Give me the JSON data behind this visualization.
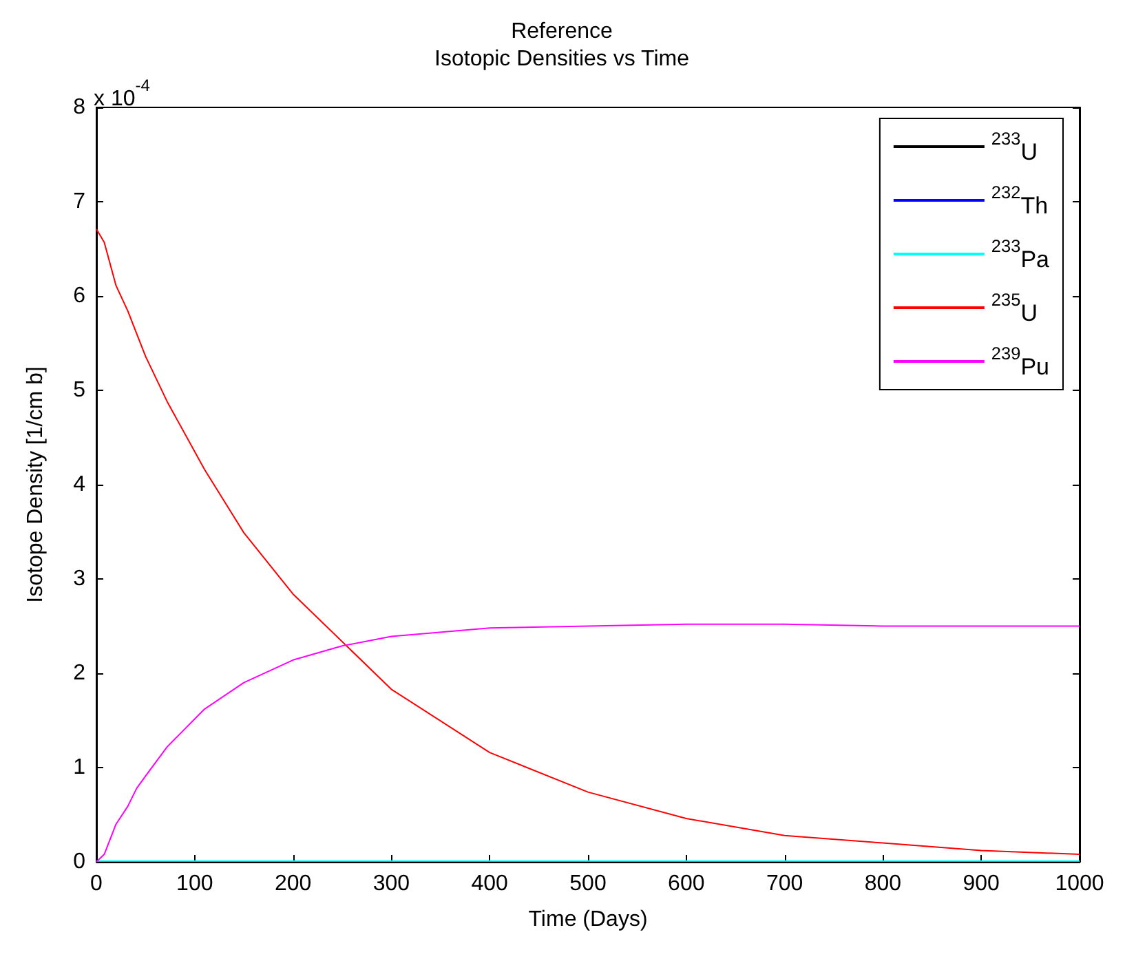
{
  "chart_data": {
    "type": "line",
    "title": "Reference",
    "subtitle": "Isotopic Densities vs Time",
    "xlabel": "Time (Days)",
    "ylabel": "Isotope Density [1/cm b]",
    "annotations": [
      "x 10$^{-4}$"
    ],
    "xlim": [
      0,
      1000
    ],
    "xticks": [
      0,
      100,
      200,
      300,
      400,
      500,
      600,
      700,
      800,
      900,
      1000
    ],
    "ylim": [
      0,
      8
    ],
    "yticks": [
      0,
      1,
      2,
      3,
      4,
      5,
      6,
      7,
      8
    ],
    "grid": false,
    "legend": "top right",
    "marker": "none",
    "line_style": "solid",
    "series": [
      {
        "name": "$^{233}$U",
        "color": "#000000",
        "x": [
          0,
          1000
        ],
        "values": [
          0,
          0
        ]
      },
      {
        "name": "$^{232}$Th",
        "color": "#0000ff",
        "values": [
          null,
          null
        ]
      },
      {
        "name": "$^{233}$Pa",
        "color": "#00ffff",
        "x": [
          0,
          1000
        ],
        "values": [
          0.01,
          0.01
        ]
      },
      {
        "name": "$^{235}$U",
        "color": "#ff0000",
        "x": [
          0,
          8,
          20,
          32,
          50,
          72,
          110,
          150,
          200,
          300,
          400,
          500,
          600,
          700,
          800,
          900,
          1000
        ],
        "values": [
          6.71,
          6.57,
          6.11,
          5.84,
          5.36,
          4.88,
          4.16,
          3.49,
          2.84,
          1.83,
          1.16,
          0.74,
          0.46,
          0.28,
          0.2,
          0.12,
          0.08
        ]
      },
      {
        "name": "$^{239}$Pu",
        "color": "#ff00ff",
        "x": [
          0,
          8,
          20,
          32,
          41,
          50,
          72,
          110,
          150,
          200,
          250,
          300,
          400,
          500,
          600,
          700,
          800,
          900,
          1000
        ],
        "values": [
          0,
          0.08,
          0.4,
          0.59,
          0.78,
          0.91,
          1.22,
          1.62,
          1.9,
          2.14,
          2.29,
          2.39,
          2.48,
          2.5,
          2.52,
          2.52,
          2.5,
          2.5,
          2.5
        ]
      }
    ]
  }
}
